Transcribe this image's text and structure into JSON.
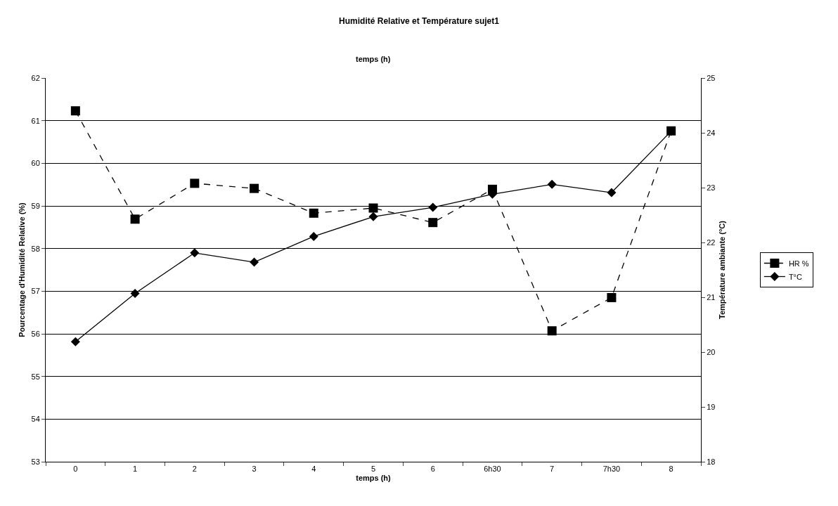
{
  "chart_data": {
    "type": "line",
    "title": "Humidité Relative et Température sujet1",
    "xlabel": "temps (h)",
    "ylabel": "Pourcentage d'Humidité Relative (%)",
    "y2label": "Température ambiante (°C)",
    "annotations": [
      "temps (h)"
    ],
    "categories": [
      "0",
      "1",
      "2",
      "3",
      "4",
      "5",
      "6",
      "6h30",
      "7",
      "7h30",
      "8"
    ],
    "series": [
      {
        "name": "HR %",
        "color": "#000000",
        "marker": "square",
        "line_style": "dashed",
        "values": [
          61.23,
          58.69,
          59.53,
          59.41,
          58.83,
          58.95,
          58.61,
          59.39,
          56.07,
          56.85,
          60.76
        ]
      },
      {
        "name": "T°C",
        "color": "#000000",
        "marker": "diamond",
        "line_style": "solid",
        "axis": "y2",
        "values": [
          20.19,
          21.07,
          21.81,
          21.64,
          22.11,
          22.47,
          22.64,
          22.88,
          23.06,
          22.91,
          24.03
        ]
      }
    ],
    "ylim": [
      53,
      62
    ],
    "yticks": [
      53,
      54,
      55,
      56,
      57,
      58,
      59,
      60,
      61,
      62
    ],
    "y2lim": [
      18,
      25
    ],
    "y2ticks": [
      18,
      19,
      20,
      21,
      22,
      23,
      24,
      25
    ],
    "grid": "y",
    "legend": "right"
  }
}
